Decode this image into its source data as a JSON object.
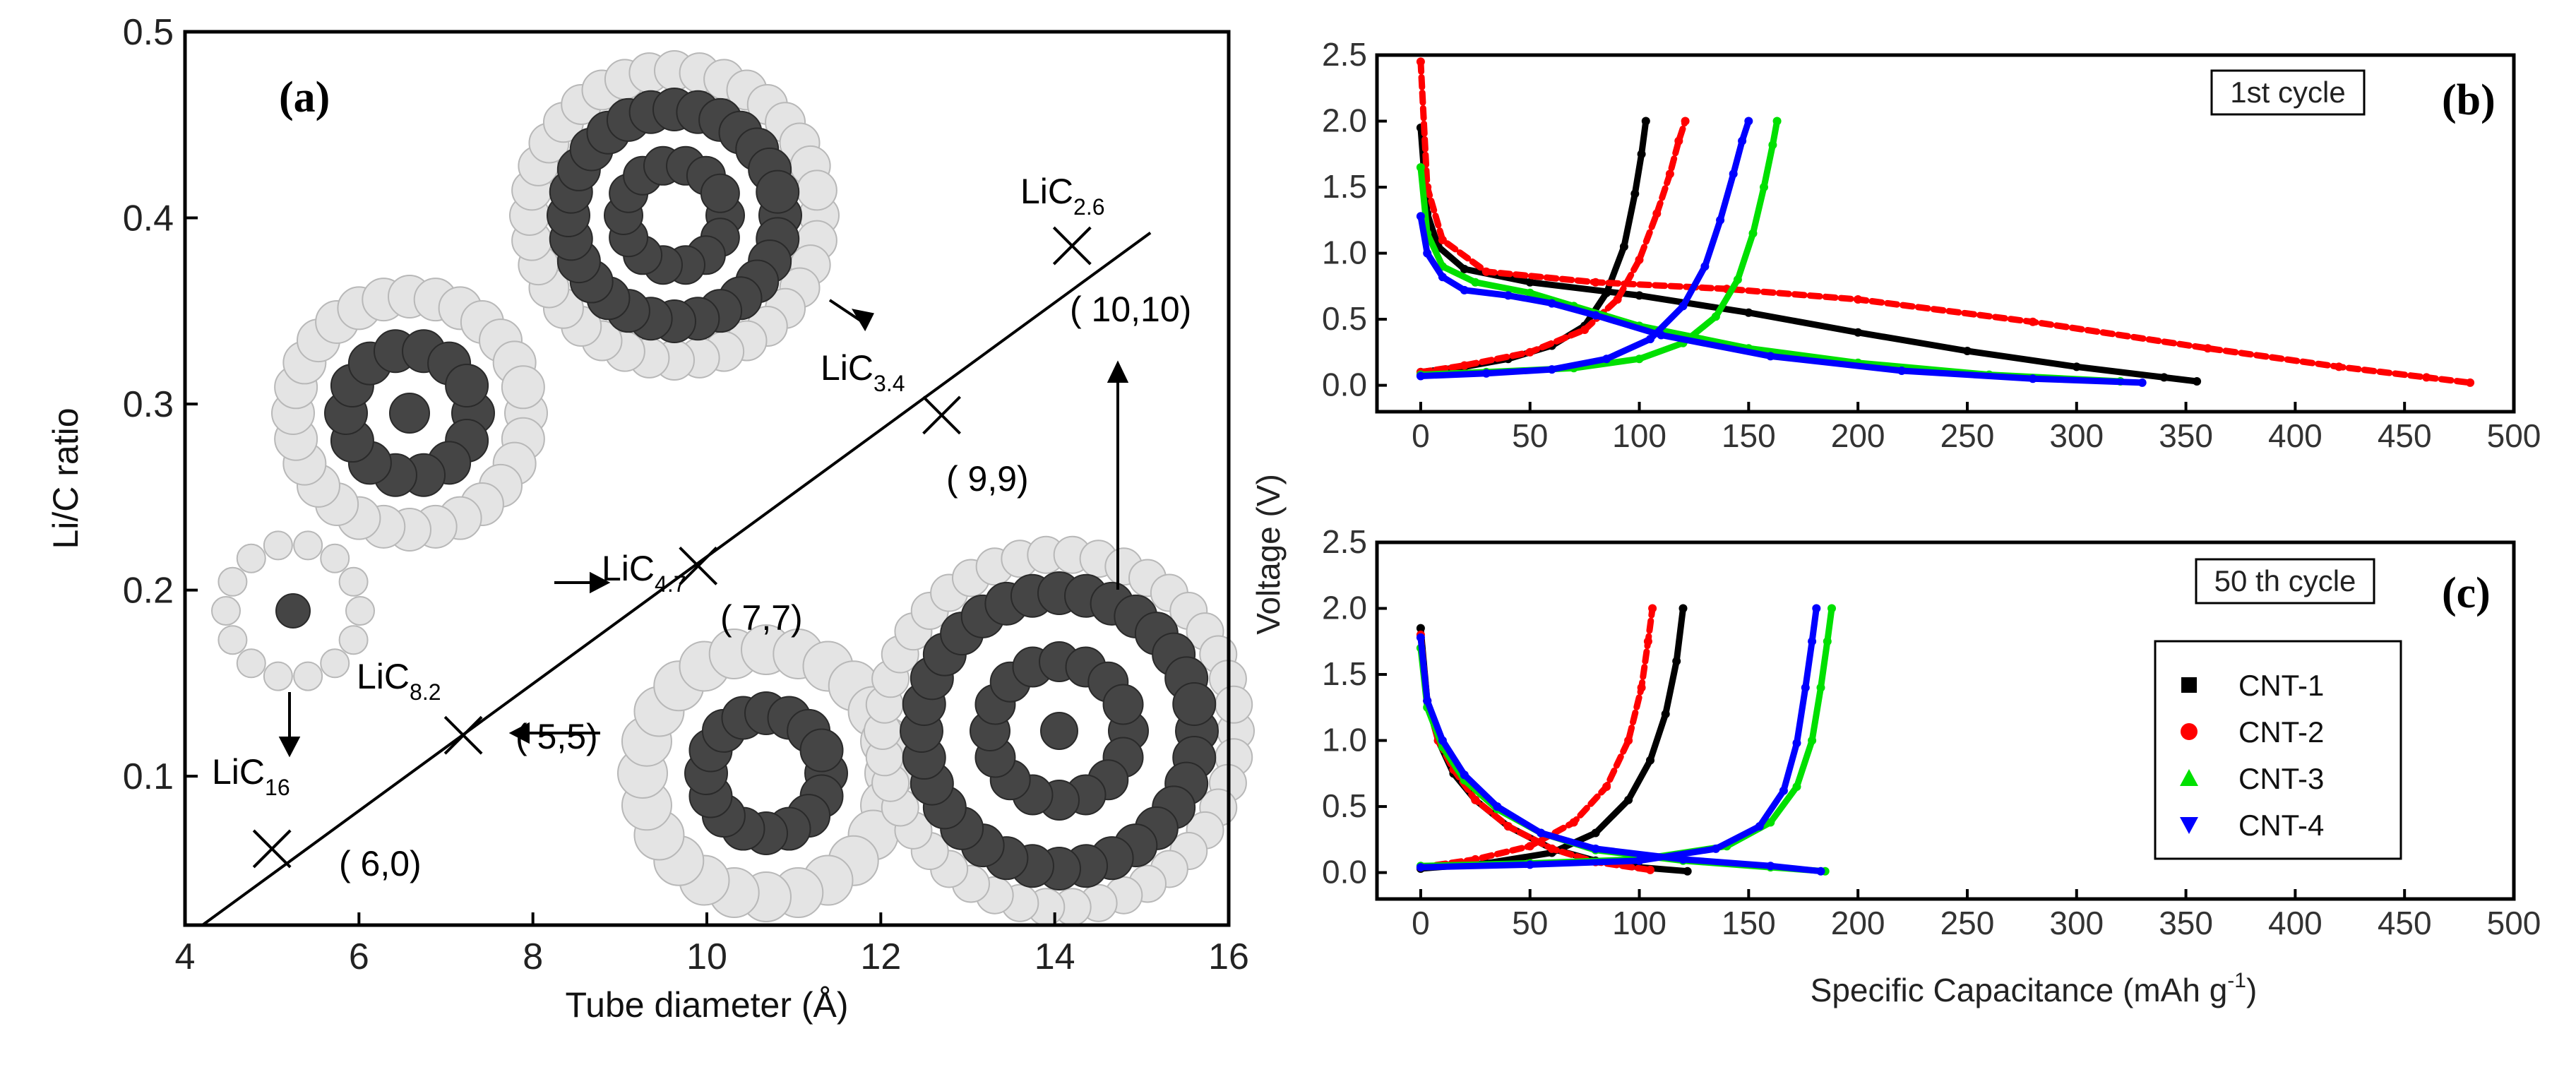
{
  "chart_data": [
    {
      "panel": "(a)",
      "type": "scatter",
      "xlabel": "Tube diameter",
      "xunit": "(Å)",
      "ylabel": "Li/C ratio",
      "xlim": [
        4,
        16
      ],
      "ylim": [
        0.02,
        0.5
      ],
      "xticks": [
        "4",
        "6",
        "8",
        "10",
        "12",
        "14",
        "16"
      ],
      "yticks": [
        "0.1",
        "0.2",
        "0.3",
        "0.4",
        "0.5"
      ],
      "points": [
        {
          "x": 5.0,
          "y": 0.061,
          "label": "( 6,0)",
          "compound": "LiC",
          "sub": "16"
        },
        {
          "x": 7.2,
          "y": 0.122,
          "label": "( 5,5)",
          "compound": "LiC",
          "sub": "8.2"
        },
        {
          "x": 9.9,
          "y": 0.213,
          "label": "( 7,7)",
          "compound": "LiC",
          "sub": "4.7"
        },
        {
          "x": 12.7,
          "y": 0.294,
          "label": "( 9,9)",
          "compound": "LiC",
          "sub": "3.4"
        },
        {
          "x": 14.2,
          "y": 0.385,
          "label": "( 10,10)",
          "compound": "LiC",
          "sub": "2.6"
        }
      ],
      "fit_line": {
        "x": [
          4.2,
          15.1
        ],
        "y": [
          0.02,
          0.392
        ]
      }
    },
    {
      "panel": "(b)",
      "type": "line",
      "box_label": "1st cycle",
      "xlim": [
        -20,
        500
      ],
      "ylim": [
        -0.2,
        2.5
      ],
      "xticks": [
        "0",
        "50",
        "100",
        "150",
        "200",
        "250",
        "300",
        "350",
        "400",
        "450",
        "500"
      ],
      "yticks": [
        "0.0",
        "0.5",
        "1.0",
        "1.5",
        "2.0",
        "2.5"
      ],
      "series": [
        {
          "name": "CNT-1",
          "color": "#000000",
          "discharge": [
            [
              0,
              1.95
            ],
            [
              3,
              1.3
            ],
            [
              8,
              1.05
            ],
            [
              20,
              0.88
            ],
            [
              50,
              0.78
            ],
            [
              100,
              0.68
            ],
            [
              150,
              0.55
            ],
            [
              200,
              0.4
            ],
            [
              250,
              0.26
            ],
            [
              300,
              0.14
            ],
            [
              340,
              0.06
            ],
            [
              355,
              0.03
            ]
          ],
          "charge": [
            [
              0,
              0.1
            ],
            [
              20,
              0.14
            ],
            [
              40,
              0.2
            ],
            [
              60,
              0.3
            ],
            [
              75,
              0.45
            ],
            [
              85,
              0.7
            ],
            [
              93,
              1.05
            ],
            [
              98,
              1.45
            ],
            [
              101,
              1.75
            ],
            [
              103,
              2.0
            ]
          ]
        },
        {
          "name": "CNT-2",
          "color": "#ff0000",
          "discharge": [
            [
              0,
              2.45
            ],
            [
              3,
              1.5
            ],
            [
              10,
              1.1
            ],
            [
              30,
              0.86
            ],
            [
              80,
              0.78
            ],
            [
              140,
              0.73
            ],
            [
              200,
              0.65
            ],
            [
              280,
              0.48
            ],
            [
              360,
              0.28
            ],
            [
              420,
              0.14
            ],
            [
              460,
              0.06
            ],
            [
              480,
              0.02
            ]
          ],
          "charge": [
            [
              0,
              0.1
            ],
            [
              20,
              0.15
            ],
            [
              50,
              0.25
            ],
            [
              75,
              0.42
            ],
            [
              90,
              0.65
            ],
            [
              100,
              0.95
            ],
            [
              108,
              1.3
            ],
            [
              114,
              1.6
            ],
            [
              118,
              1.85
            ],
            [
              121,
              2.0
            ]
          ]
        },
        {
          "name": "CNT-3",
          "color": "#00e000",
          "discharge": [
            [
              0,
              1.65
            ],
            [
              3,
              1.15
            ],
            [
              10,
              0.9
            ],
            [
              25,
              0.78
            ],
            [
              50,
              0.7
            ],
            [
              70,
              0.6
            ],
            [
              100,
              0.45
            ],
            [
              150,
              0.28
            ],
            [
              200,
              0.17
            ],
            [
              260,
              0.08
            ],
            [
              320,
              0.03
            ]
          ],
          "charge": [
            [
              0,
              0.08
            ],
            [
              30,
              0.1
            ],
            [
              70,
              0.13
            ],
            [
              100,
              0.2
            ],
            [
              120,
              0.32
            ],
            [
              135,
              0.52
            ],
            [
              145,
              0.8
            ],
            [
              152,
              1.15
            ],
            [
              157,
              1.5
            ],
            [
              161,
              1.82
            ],
            [
              163,
              2.0
            ]
          ]
        },
        {
          "name": "CNT-4",
          "color": "#0000ff",
          "discharge": [
            [
              0,
              1.28
            ],
            [
              3,
              1.0
            ],
            [
              10,
              0.82
            ],
            [
              20,
              0.72
            ],
            [
              40,
              0.68
            ],
            [
              60,
              0.62
            ],
            [
              80,
              0.53
            ],
            [
              110,
              0.38
            ],
            [
              160,
              0.22
            ],
            [
              220,
              0.11
            ],
            [
              280,
              0.05
            ],
            [
              330,
              0.02
            ]
          ],
          "charge": [
            [
              0,
              0.07
            ],
            [
              30,
              0.09
            ],
            [
              60,
              0.12
            ],
            [
              85,
              0.2
            ],
            [
              105,
              0.35
            ],
            [
              120,
              0.6
            ],
            [
              130,
              0.9
            ],
            [
              137,
              1.25
            ],
            [
              143,
              1.6
            ],
            [
              147,
              1.85
            ],
            [
              150,
              2.0
            ]
          ]
        }
      ]
    },
    {
      "panel": "(c)",
      "type": "line",
      "box_label": "50 th cycle",
      "xlabel": "Specific Capacitance (mAh g",
      "xlabel_sup": "-1",
      "xlabel_end": ")",
      "ylabel": "Voltage (V)",
      "xlim": [
        -20,
        500
      ],
      "ylim": [
        -0.2,
        2.5
      ],
      "xticks": [
        "0",
        "50",
        "100",
        "150",
        "200",
        "250",
        "300",
        "350",
        "400",
        "450",
        "500"
      ],
      "yticks": [
        "0.0",
        "0.5",
        "1.0",
        "1.5",
        "2.0",
        "2.5"
      ],
      "series": [
        {
          "name": "CNT-1",
          "color": "#000000",
          "discharge": [
            [
              0,
              1.85
            ],
            [
              3,
              1.3
            ],
            [
              8,
              1.0
            ],
            [
              15,
              0.75
            ],
            [
              25,
              0.55
            ],
            [
              40,
              0.35
            ],
            [
              60,
              0.18
            ],
            [
              80,
              0.09
            ],
            [
              100,
              0.04
            ],
            [
              122,
              0.01
            ]
          ],
          "charge": [
            [
              0,
              0.03
            ],
            [
              30,
              0.07
            ],
            [
              60,
              0.15
            ],
            [
              80,
              0.3
            ],
            [
              95,
              0.55
            ],
            [
              105,
              0.85
            ],
            [
              112,
              1.2
            ],
            [
              117,
              1.6
            ],
            [
              120,
              2.0
            ]
          ]
        },
        {
          "name": "CNT-2",
          "color": "#ff0000",
          "discharge": [
            [
              0,
              1.8
            ],
            [
              3,
              1.3
            ],
            [
              8,
              1.0
            ],
            [
              15,
              0.78
            ],
            [
              25,
              0.55
            ],
            [
              40,
              0.35
            ],
            [
              60,
              0.18
            ],
            [
              80,
              0.08
            ],
            [
              105,
              0.02
            ]
          ],
          "charge": [
            [
              0,
              0.04
            ],
            [
              25,
              0.1
            ],
            [
              50,
              0.2
            ],
            [
              70,
              0.38
            ],
            [
              85,
              0.65
            ],
            [
              95,
              1.0
            ],
            [
              101,
              1.4
            ],
            [
              104,
              1.75
            ],
            [
              106,
              2.0
            ]
          ]
        },
        {
          "name": "CNT-3",
          "color": "#00e000",
          "discharge": [
            [
              0,
              1.7
            ],
            [
              3,
              1.25
            ],
            [
              10,
              0.95
            ],
            [
              20,
              0.7
            ],
            [
              35,
              0.48
            ],
            [
              55,
              0.3
            ],
            [
              80,
              0.17
            ],
            [
              120,
              0.09
            ],
            [
              160,
              0.04
            ],
            [
              185,
              0.01
            ]
          ],
          "charge": [
            [
              0,
              0.05
            ],
            [
              50,
              0.07
            ],
            [
              100,
              0.1
            ],
            [
              140,
              0.2
            ],
            [
              160,
              0.38
            ],
            [
              172,
              0.65
            ],
            [
              179,
              1.0
            ],
            [
              183,
              1.4
            ],
            [
              186,
              1.75
            ],
            [
              188,
              2.0
            ]
          ]
        },
        {
          "name": "CNT-4",
          "color": "#0000ff",
          "discharge": [
            [
              0,
              1.78
            ],
            [
              3,
              1.3
            ],
            [
              10,
              1.0
            ],
            [
              20,
              0.74
            ],
            [
              35,
              0.5
            ],
            [
              55,
              0.3
            ],
            [
              80,
              0.18
            ],
            [
              120,
              0.1
            ],
            [
              160,
              0.05
            ],
            [
              183,
              0.01
            ]
          ],
          "charge": [
            [
              0,
              0.04
            ],
            [
              50,
              0.06
            ],
            [
              100,
              0.09
            ],
            [
              135,
              0.18
            ],
            [
              155,
              0.35
            ],
            [
              166,
              0.62
            ],
            [
              172,
              0.98
            ],
            [
              176,
              1.4
            ],
            [
              179,
              1.75
            ],
            [
              181,
              2.0
            ]
          ]
        }
      ]
    }
  ],
  "legend": [
    "CNT-1",
    "CNT-2",
    "CNT-3",
    "CNT-4"
  ],
  "panel_labels": {
    "a": "(a)",
    "b": "(b)",
    "c": "(c)"
  },
  "colors": {
    "cnt1": "#000000",
    "cnt2": "#ff0000",
    "cnt3": "#00e000",
    "cnt4": "#0000ff",
    "outer_atom": "#e4e4e4",
    "inner_atom": "#454545"
  }
}
